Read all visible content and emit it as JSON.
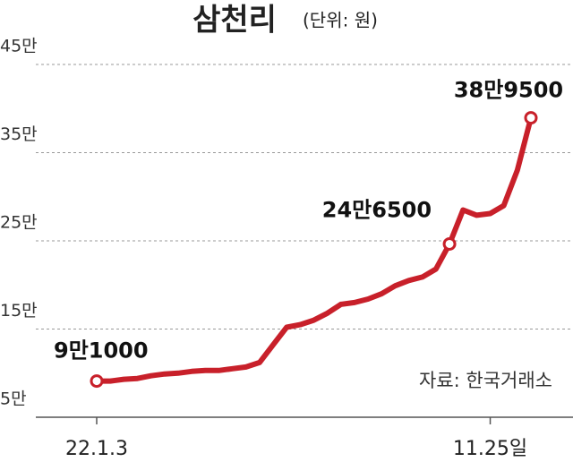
{
  "chart_data": {
    "type": "line",
    "title": "삼천리",
    "subtitle": "(단위: 원)",
    "source": "자료: 한국거래소",
    "categories": [
      "22.1.3",
      null,
      null,
      null,
      null,
      null,
      null,
      null,
      null,
      null,
      null,
      null,
      null,
      null,
      null,
      null,
      null,
      null,
      null,
      null,
      null,
      null,
      null,
      null,
      null,
      null,
      null,
      null,
      null,
      "11.25일",
      null,
      null,
      null
    ],
    "values": [
      91000,
      91000,
      93000,
      94000,
      97000,
      99000,
      100000,
      102000,
      103000,
      103000,
      105000,
      107000,
      112000,
      132000,
      152000,
      155000,
      160000,
      168000,
      178000,
      180000,
      184000,
      190000,
      199000,
      205000,
      209000,
      218000,
      246500,
      285000,
      279000,
      281000,
      290000,
      330000,
      389500
    ],
    "value_labels": [
      "9만1000",
      null,
      null,
      null,
      null,
      null,
      null,
      null,
      null,
      null,
      null,
      null,
      null,
      null,
      null,
      null,
      null,
      null,
      null,
      null,
      null,
      null,
      null,
      null,
      null,
      null,
      "24만6500",
      null,
      null,
      null,
      null,
      null,
      "38만9500"
    ],
    "color": "#c8202a",
    "ylim": [
      50000,
      450000
    ],
    "yticks": [
      {
        "value": 50000,
        "label": "5만"
      },
      {
        "value": 150000,
        "label": "15만"
      },
      {
        "value": 250000,
        "label": "25만"
      },
      {
        "value": 350000,
        "label": "35만"
      },
      {
        "value": 450000,
        "label": "45만"
      }
    ],
    "grid": true
  }
}
